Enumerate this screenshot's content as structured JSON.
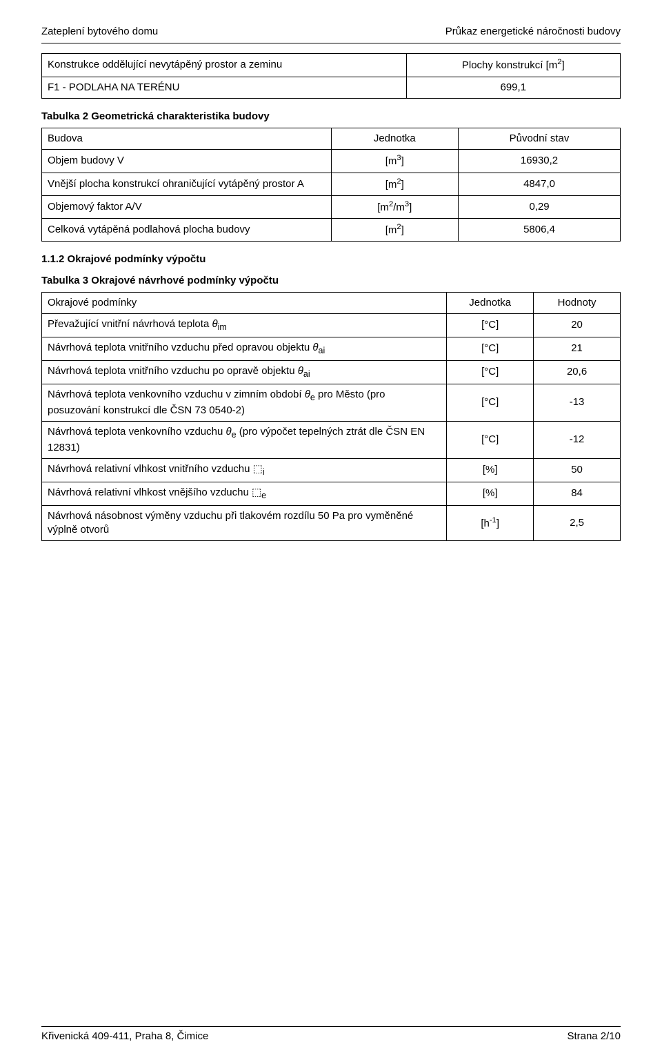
{
  "header": {
    "left": "Zateplení bytového domu",
    "right": "Průkaz energetické náročnosti budovy"
  },
  "table1": {
    "h1": "Konstrukce oddělující nevytápěný prostor a zeminu",
    "h2_prefix": "Plochy konstrukcí [m",
    "h2_suffix": "]",
    "r1c1": "F1 - PODLAHA NA TERÉNU",
    "r1c2": "699,1"
  },
  "table2": {
    "caption": "Tabulka 2 Geometrická charakteristika budovy",
    "head": {
      "c1": "Budova",
      "c2": "Jednotka",
      "c3": "Původní stav"
    },
    "rows": [
      {
        "c1": "Objem budovy V",
        "c2_pre": "[m",
        "c2_sup": "3",
        "c2_post": "]",
        "c3": "16930,2"
      },
      {
        "c1": "Vnější plocha konstrukcí ohraničující vytápěný prostor A",
        "c2_pre": "[m",
        "c2_sup": "2",
        "c2_post": "]",
        "c3": "4847,0"
      },
      {
        "c1": "Objemový faktor A/V",
        "c2_pre": "[m",
        "c2_sup": "2",
        "c2_mid": "/m",
        "c2_sup2": "3",
        "c2_post": "]",
        "c3": "0,29"
      },
      {
        "c1": "Celková vytápěná podlahová plocha budovy",
        "c2_pre": "[m",
        "c2_sup": "2",
        "c2_post": "]",
        "c3": "5806,4"
      }
    ]
  },
  "section": "1.1.2 Okrajové podmínky výpočtu",
  "table3": {
    "caption": "Tabulka 3 Okrajové návrhové podmínky výpočtu",
    "head": {
      "c1": "Okrajové podmínky",
      "c2": "Jednotka",
      "c3": "Hodnoty"
    },
    "rows": [
      {
        "c1_html": "Převažující vnitřní návrhová teplota <i>θ</i><sub>im</sub>",
        "c2": "[°C]",
        "c3": "20"
      },
      {
        "c1_html": "Návrhová teplota vnitřního vzduchu před opravou objektu <i>θ</i><sub>ai</sub>",
        "c2": "[°C]",
        "c3": "21"
      },
      {
        "c1_html": "Návrhová teplota vnitřního vzduchu po opravě objektu <i>θ</i><sub>ai</sub>",
        "c2": "[°C]",
        "c3": "20,6"
      },
      {
        "c1_html": "Návrhová teplota venkovního vzduchu v zimním období <i>θ</i><sub>e</sub> pro Město (pro posuzování konstrukcí dle ČSN 73 0540-2)",
        "c2": "[°C]",
        "c3": "-13"
      },
      {
        "c1_html": "Návrhová teplota venkovního vzduchu <i>θ</i><sub>e</sub> (pro výpočet tepelných ztrát dle ČSN EN 12831)",
        "c2": "[°C]",
        "c3": "-12"
      },
      {
        "c1_html": "Návrhová relativní vlhkost vnitřního vzduchu &#x2B1A;<sub>i</sub>",
        "c2": "[%]",
        "c3": "50"
      },
      {
        "c1_html": "Návrhová relativní vlhkost vnějšího vzduchu &#x2B1A;<sub>e</sub>",
        "c2": "[%]",
        "c3": "84"
      },
      {
        "c1_html": "Návrhová násobnost výměny vzduchu při tlakovém rozdílu 50 Pa pro vyměněné výplně otvorů",
        "c2_html": "[h<sup>-1</sup>]",
        "c3": "2,5"
      }
    ]
  },
  "footer": {
    "left": "Křivenická 409-411, Praha 8, Čimice",
    "right": "Strana 2/10"
  }
}
